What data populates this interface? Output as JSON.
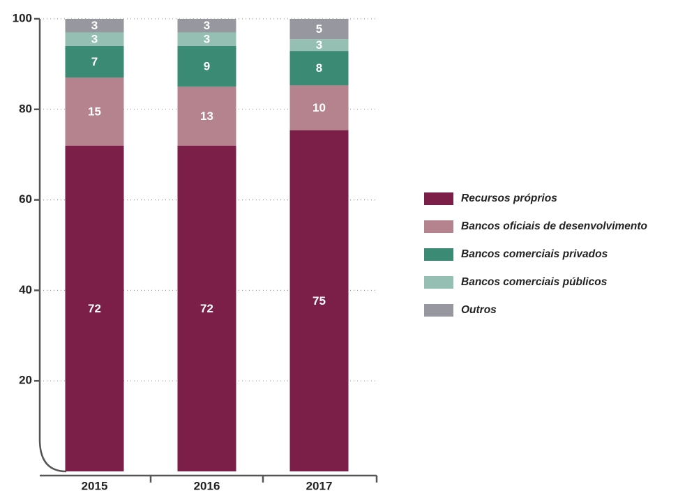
{
  "chart_data": {
    "type": "stacked_bar",
    "categories": [
      "2015",
      "2016",
      "2017"
    ],
    "series": [
      {
        "name": "Recursos próprios",
        "color": "#7b1f48",
        "values": [
          72,
          72,
          75.4
        ],
        "value_labels": [
          "72",
          "72",
          "75"
        ]
      },
      {
        "name": "Bancos oficiais de desenvolvimento",
        "color": "#b5838d",
        "values": [
          15,
          13,
          9.9
        ],
        "value_labels": [
          "15",
          "13",
          "10"
        ]
      },
      {
        "name": "Bancos comerciais privados",
        "color": "#3a8a74",
        "values": [
          7,
          9,
          7.6
        ],
        "value_labels": [
          "7",
          "9",
          "8"
        ]
      },
      {
        "name": "Bancos comerciais públicos",
        "color": "#94bfb2",
        "values": [
          3,
          3,
          2.6
        ],
        "value_labels": [
          "3",
          "3",
          "3"
        ]
      },
      {
        "name": "Outros",
        "color": "#97979f",
        "values": [
          3,
          3,
          4.5
        ],
        "value_labels": [
          "3",
          "3",
          "5"
        ]
      }
    ],
    "ylim": [
      0,
      100
    ],
    "yticks": [
      20,
      40,
      60,
      80,
      100
    ],
    "grid": true,
    "legend": "right"
  }
}
